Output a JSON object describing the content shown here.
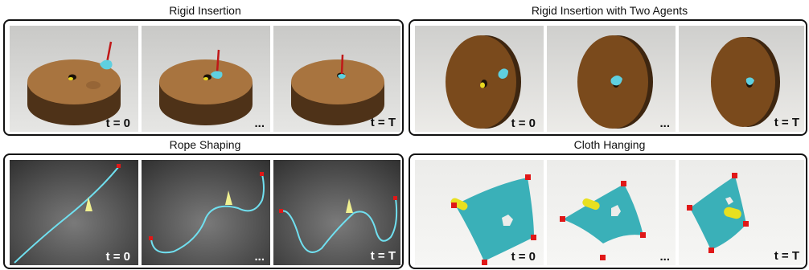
{
  "groups": [
    {
      "title": "Rigid Insertion",
      "frames": [
        "t = 0",
        "...",
        "t = T"
      ]
    },
    {
      "title": "Rigid Insertion with Two Agents",
      "frames": [
        "t = 0",
        "...",
        "t = T"
      ]
    },
    {
      "title": "Rope Shaping",
      "frames": [
        "t = 0",
        "...",
        "t = T"
      ]
    },
    {
      "title": "Cloth Hanging",
      "frames": [
        "t = 0",
        "...",
        "t = T"
      ]
    }
  ],
  "colors": {
    "wood_top": "#b07a44",
    "wood_side": "#5a3a1c",
    "peg_cyan": "#5fd0e0",
    "hole_yellow": "#e8d820",
    "rod_red": "#c01818",
    "cloth_teal": "#3ab0b8",
    "corner_red": "#e01818",
    "rope_cyan": "#70e0f0",
    "rope_bg": "#4a4a4a"
  },
  "icons": [
    "wooden-disk",
    "peg",
    "rope",
    "cloth",
    "yellow-cone-marker",
    "red-corner-marker",
    "yellow-hanger"
  ]
}
